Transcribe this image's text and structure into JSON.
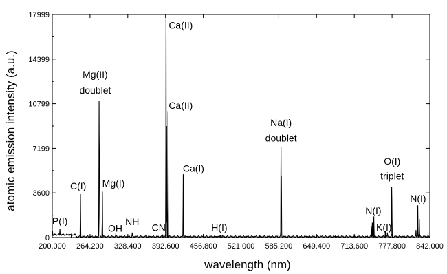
{
  "chart_data": {
    "type": "line",
    "title": "",
    "xlabel": "wavelength (nm)",
    "ylabel": "atomic emission intensity (a.u.)",
    "xlim": [
      200,
      842
    ],
    "ylim": [
      0,
      17999
    ],
    "x_ticks": [
      200,
      264.2,
      328.4,
      392.6,
      456.8,
      521,
      585.2,
      649.4,
      713.6,
      777.8,
      842
    ],
    "x_tick_labels": [
      "200.000",
      "264.200",
      "328.400",
      "392.600",
      "456.800",
      "521.000",
      "585.200",
      "649.400",
      "713.600",
      "777.800",
      "842.000"
    ],
    "y_ticks": [
      0,
      3600,
      7199,
      10799,
      14399,
      17999
    ],
    "y_tick_labels": [
      "0",
      "3600",
      "7199",
      "10799",
      "14399",
      "17999"
    ],
    "grid": false,
    "series": [
      {
        "values_note": "",
        "peaks": [
          {
            "x": 200.5,
            "y": 500
          },
          {
            "x": 204,
            "y": 300
          },
          {
            "x": 213,
            "y": 700
          },
          {
            "x": 230,
            "y": 250
          },
          {
            "x": 247.9,
            "y": 3500
          },
          {
            "x": 279.6,
            "y": 11000
          },
          {
            "x": 280.3,
            "y": 6300
          },
          {
            "x": 285.2,
            "y": 3700
          },
          {
            "x": 308,
            "y": 300
          },
          {
            "x": 336,
            "y": 400
          },
          {
            "x": 388,
            "y": 200
          },
          {
            "x": 393.4,
            "y": 17999
          },
          {
            "x": 396.8,
            "y": 10200
          },
          {
            "x": 394.5,
            "y": 9000
          },
          {
            "x": 422.7,
            "y": 5100
          },
          {
            "x": 486,
            "y": 200
          },
          {
            "x": 589.0,
            "y": 7300
          },
          {
            "x": 589.6,
            "y": 5000
          },
          {
            "x": 742.4,
            "y": 900
          },
          {
            "x": 744.2,
            "y": 1200
          },
          {
            "x": 746.8,
            "y": 1700
          },
          {
            "x": 766.5,
            "y": 500
          },
          {
            "x": 769.9,
            "y": 400
          },
          {
            "x": 777.2,
            "y": 4100
          },
          {
            "x": 777.5,
            "y": 3200
          },
          {
            "x": 822,
            "y": 300
          },
          {
            "x": 818.5,
            "y": 600
          },
          {
            "x": 821.6,
            "y": 2600
          },
          {
            "x": 824.2,
            "y": 1500
          },
          {
            "x": 839,
            "y": 250
          }
        ]
      }
    ],
    "annotations": [
      {
        "text": "P(I)",
        "x": 213,
        "y": 1050,
        "anchor": "middle"
      },
      {
        "text": "C(I)",
        "x": 244,
        "y": 3900,
        "anchor": "middle"
      },
      {
        "text": "Mg(II)",
        "x": 273,
        "y": 12900,
        "anchor": "middle"
      },
      {
        "text": "doublet",
        "x": 273,
        "y": 11600,
        "anchor": "middle"
      },
      {
        "text": "Mg(I)",
        "x": 285,
        "y": 4100,
        "anchor": "start"
      },
      {
        "text": "OH",
        "x": 307,
        "y": 480,
        "anchor": "middle"
      },
      {
        "text": "NH",
        "x": 336,
        "y": 1000,
        "anchor": "middle"
      },
      {
        "text": "CN",
        "x": 381,
        "y": 520,
        "anchor": "middle"
      },
      {
        "text": "Ca(II)",
        "x": 398,
        "y": 16850,
        "anchor": "start"
      },
      {
        "text": "Ca(II)",
        "x": 398,
        "y": 10400,
        "anchor": "start"
      },
      {
        "text": "Ca(I)",
        "x": 422,
        "y": 5300,
        "anchor": "start"
      },
      {
        "text": "H(I)",
        "x": 484,
        "y": 520,
        "anchor": "middle"
      },
      {
        "text": "Na(I)",
        "x": 589,
        "y": 9000,
        "anchor": "middle"
      },
      {
        "text": "doublet",
        "x": 589,
        "y": 7750,
        "anchor": "middle"
      },
      {
        "text": "N(I)",
        "x": 746,
        "y": 1900,
        "anchor": "middle"
      },
      {
        "text": "K(I)",
        "x": 764,
        "y": 550,
        "anchor": "middle"
      },
      {
        "text": "O(I)",
        "x": 778,
        "y": 5900,
        "anchor": "middle"
      },
      {
        "text": "triplet",
        "x": 778,
        "y": 4700,
        "anchor": "middle"
      },
      {
        "text": "N(I)",
        "x": 822,
        "y": 2900,
        "anchor": "middle"
      }
    ]
  }
}
